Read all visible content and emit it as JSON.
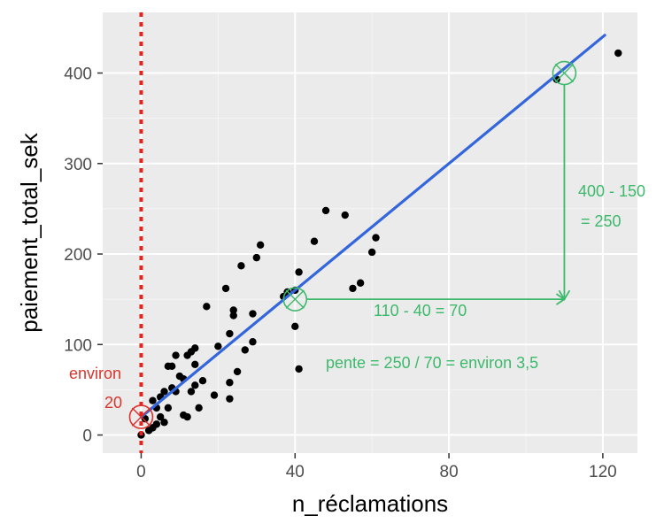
{
  "chart_data": {
    "type": "scatter",
    "xlabel": "n_réclamations",
    "ylabel": "paiement_total_sek",
    "xlim": [
      -10,
      129
    ],
    "ylim": [
      -20,
      467
    ],
    "x_ticks": [
      0,
      40,
      80,
      120
    ],
    "y_ticks": [
      0,
      100,
      200,
      300,
      400
    ],
    "x_tick_labels": [
      "0",
      "40",
      "80",
      "120"
    ],
    "y_tick_labels": [
      "0",
      "100",
      "200",
      "300",
      "400"
    ],
    "grid": true,
    "colors": {
      "panel": "#ebebeb",
      "grid_major": "#ffffff",
      "grid_minor": "#f5f5f5",
      "points": "#000000",
      "fit_line": "#3366dd",
      "intercept_marker": "#e0302a",
      "slope_annotation": "#3cb96b"
    },
    "points": [
      [
        0,
        0
      ],
      [
        1,
        18
      ],
      [
        2,
        5
      ],
      [
        3,
        8
      ],
      [
        3,
        38
      ],
      [
        4,
        12
      ],
      [
        4,
        30
      ],
      [
        5,
        20
      ],
      [
        5,
        42
      ],
      [
        6,
        14
      ],
      [
        6,
        48
      ],
      [
        7,
        30
      ],
      [
        7,
        76
      ],
      [
        8,
        52
      ],
      [
        8,
        76
      ],
      [
        9,
        48
      ],
      [
        9,
        88
      ],
      [
        10,
        65
      ],
      [
        11,
        22
      ],
      [
        11,
        62
      ],
      [
        12,
        20
      ],
      [
        12,
        88
      ],
      [
        13,
        48
      ],
      [
        13,
        92
      ],
      [
        14,
        55
      ],
      [
        14,
        78
      ],
      [
        14,
        96
      ],
      [
        15,
        30
      ],
      [
        16,
        60
      ],
      [
        17,
        142
      ],
      [
        19,
        44
      ],
      [
        20,
        98
      ],
      [
        22,
        162
      ],
      [
        23,
        40
      ],
      [
        23,
        58
      ],
      [
        23,
        112
      ],
      [
        24,
        138
      ],
      [
        24,
        132
      ],
      [
        25,
        70
      ],
      [
        26,
        187
      ],
      [
        27,
        94
      ],
      [
        29,
        103
      ],
      [
        29,
        134
      ],
      [
        30,
        196
      ],
      [
        31,
        210
      ],
      [
        37,
        153
      ],
      [
        38,
        158
      ],
      [
        40,
        120
      ],
      [
        40,
        160
      ],
      [
        41,
        73
      ],
      [
        41,
        180
      ],
      [
        45,
        214
      ],
      [
        48,
        248
      ],
      [
        53,
        243
      ],
      [
        55,
        162
      ],
      [
        57,
        168
      ],
      [
        60,
        202
      ],
      [
        61,
        218
      ],
      [
        108,
        393
      ],
      [
        124,
        422
      ]
    ],
    "fit_line": {
      "intercept": 20,
      "slope": 3.5,
      "x_range": [
        0,
        120.5
      ]
    },
    "annotations": {
      "intercept_point": [
        0,
        20
      ],
      "intercept_label_1": "environ",
      "intercept_label_2": "20",
      "vline_x": 0,
      "p1": [
        40,
        150
      ],
      "p2": [
        110,
        400
      ],
      "horizontal_label": "110 - 40 = 70",
      "vertical_label_1": "400 - 150",
      "vertical_label_2": "= 250",
      "slope_label": "pente = 250 / 70 = environ 3,5"
    }
  }
}
